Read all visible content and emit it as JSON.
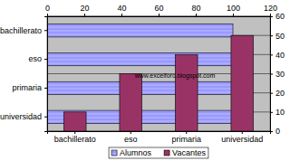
{
  "chart_data": {
    "type": "bar",
    "categories": [
      "bachillerato",
      "eso",
      "primaria",
      "universidad"
    ],
    "series": [
      {
        "name": "Alumnos",
        "type": "bar",
        "orientation": "horizontal",
        "color": "#9999ff",
        "values": [
          100,
          100,
          100,
          100
        ]
      },
      {
        "name": "Vacantes",
        "type": "bar",
        "axis": "y2",
        "color": "#993366",
        "values": [
          10,
          30,
          40,
          50
        ]
      }
    ],
    "xlim": [
      0,
      120
    ],
    "xticks": [
      0,
      20,
      40,
      60,
      80,
      100,
      120
    ],
    "y2lim": [
      0,
      60
    ],
    "y2ticks": [
      0,
      10,
      20,
      30,
      40,
      50,
      60
    ],
    "grid": true,
    "legend": "bottom",
    "annotations": [
      "www.excelforo.blogspot.com"
    ]
  }
}
